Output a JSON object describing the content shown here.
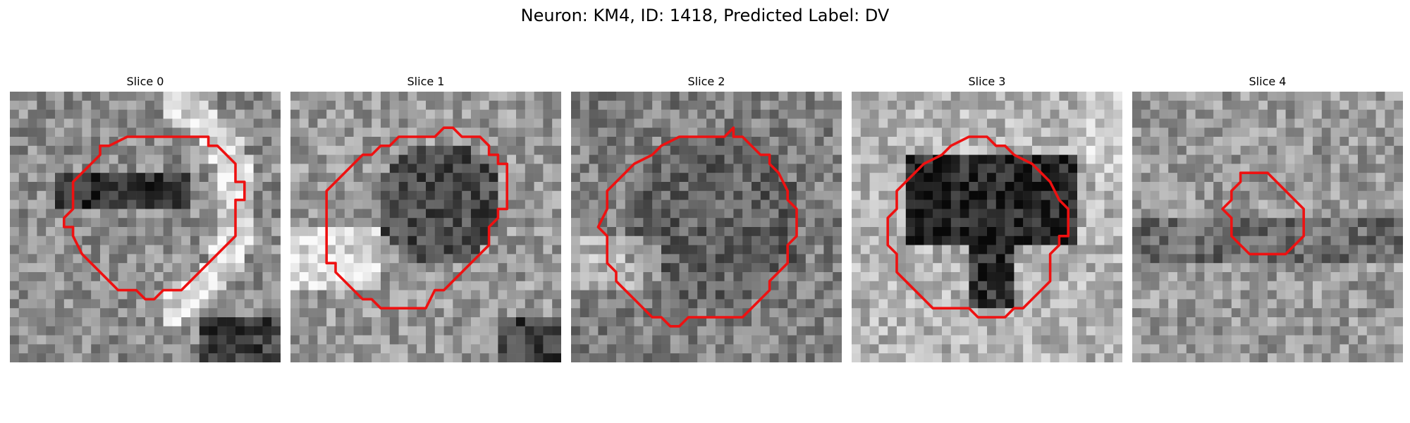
{
  "figure": {
    "title": "Neuron: KM4, ID: 1418, Predicted Label: DV"
  },
  "panels": [
    {
      "title": "Slice 0",
      "contour_color": "#ee1111",
      "seed": 11,
      "contour": [
        [
          14,
          5
        ],
        [
          22,
          5
        ],
        [
          22,
          6
        ],
        [
          23,
          6
        ],
        [
          25,
          8
        ],
        [
          25,
          10
        ],
        [
          26,
          10
        ],
        [
          26,
          12
        ],
        [
          25,
          12
        ],
        [
          25,
          16
        ],
        [
          24,
          17
        ],
        [
          21,
          20
        ],
        [
          20,
          21
        ],
        [
          19,
          22
        ],
        [
          17,
          22
        ],
        [
          16,
          23
        ],
        [
          15,
          23
        ],
        [
          14,
          22
        ],
        [
          14,
          22
        ],
        [
          12,
          22
        ],
        [
          11,
          21
        ],
        [
          9,
          19
        ],
        [
          8,
          18
        ],
        [
          7,
          16
        ],
        [
          7,
          15
        ],
        [
          6,
          15
        ],
        [
          6,
          14
        ],
        [
          7,
          13
        ],
        [
          7,
          10
        ],
        [
          8,
          9
        ],
        [
          9,
          8
        ],
        [
          10,
          7
        ],
        [
          10,
          6
        ],
        [
          11,
          6
        ],
        [
          13,
          5
        ],
        [
          14,
          5
        ]
      ]
    },
    {
      "title": "Slice 1",
      "contour_color": "#ee1111",
      "seed": 23,
      "contour": [
        [
          12,
          5
        ],
        [
          16,
          5
        ],
        [
          17,
          4
        ],
        [
          18,
          4
        ],
        [
          19,
          5
        ],
        [
          21,
          5
        ],
        [
          22,
          6
        ],
        [
          22,
          7
        ],
        [
          23,
          7
        ],
        [
          23,
          8
        ],
        [
          24,
          8
        ],
        [
          24,
          13
        ],
        [
          23,
          13
        ],
        [
          23,
          14
        ],
        [
          22,
          15
        ],
        [
          22,
          17
        ],
        [
          21,
          18
        ],
        [
          20,
          19
        ],
        [
          17,
          22
        ],
        [
          16,
          22
        ],
        [
          15,
          24
        ],
        [
          10,
          24
        ],
        [
          9,
          23
        ],
        [
          8,
          23
        ],
        [
          5,
          20
        ],
        [
          5,
          19
        ],
        [
          4,
          19
        ],
        [
          4,
          18
        ],
        [
          4,
          11
        ],
        [
          7,
          8
        ],
        [
          8,
          7
        ],
        [
          9,
          7
        ],
        [
          10,
          6
        ],
        [
          11,
          6
        ],
        [
          12,
          5
        ]
      ]
    },
    {
      "title": "Slice 2",
      "contour_color": "#ee1111",
      "seed": 37,
      "contour": [
        [
          12,
          5
        ],
        [
          17,
          5
        ],
        [
          18,
          4
        ],
        [
          18,
          5
        ],
        [
          19,
          5
        ],
        [
          21,
          7
        ],
        [
          22,
          7
        ],
        [
          22,
          8
        ],
        [
          23,
          9
        ],
        [
          24,
          11
        ],
        [
          24,
          12
        ],
        [
          25,
          13
        ],
        [
          25,
          16
        ],
        [
          24,
          17
        ],
        [
          24,
          19
        ],
        [
          23,
          20
        ],
        [
          22,
          21
        ],
        [
          22,
          22
        ],
        [
          21,
          23
        ],
        [
          20,
          24
        ],
        [
          19,
          25
        ],
        [
          13,
          25
        ],
        [
          12,
          26
        ],
        [
          11,
          26
        ],
        [
          10,
          25
        ],
        [
          9,
          25
        ],
        [
          7,
          23
        ],
        [
          6,
          22
        ],
        [
          5,
          21
        ],
        [
          5,
          20
        ],
        [
          4,
          19
        ],
        [
          4,
          16
        ],
        [
          3,
          15
        ],
        [
          4,
          13
        ],
        [
          4,
          11
        ],
        [
          5,
          10
        ],
        [
          6,
          9
        ],
        [
          7,
          8
        ],
        [
          9,
          7
        ],
        [
          10,
          6
        ],
        [
          12,
          5
        ]
      ]
    },
    {
      "title": "Slice 3",
      "contour_color": "#ee1111",
      "seed": 53,
      "contour": [
        [
          13,
          5
        ],
        [
          15,
          5
        ],
        [
          16,
          6
        ],
        [
          17,
          6
        ],
        [
          18,
          7
        ],
        [
          20,
          8
        ],
        [
          21,
          9
        ],
        [
          22,
          10
        ],
        [
          23,
          12
        ],
        [
          24,
          13
        ],
        [
          24,
          16
        ],
        [
          23,
          16
        ],
        [
          23,
          17
        ],
        [
          22,
          18
        ],
        [
          22,
          21
        ],
        [
          21,
          22
        ],
        [
          20,
          23
        ],
        [
          19,
          24
        ],
        [
          18,
          24
        ],
        [
          17,
          25
        ],
        [
          14,
          25
        ],
        [
          13,
          24
        ],
        [
          9,
          24
        ],
        [
          8,
          23
        ],
        [
          6,
          21
        ],
        [
          5,
          20
        ],
        [
          5,
          18
        ],
        [
          4,
          17
        ],
        [
          4,
          14
        ],
        [
          5,
          13
        ],
        [
          5,
          11
        ],
        [
          6,
          10
        ],
        [
          7,
          9
        ],
        [
          8,
          8
        ],
        [
          10,
          7
        ],
        [
          11,
          6
        ],
        [
          13,
          5
        ]
      ]
    },
    {
      "title": "Slice 4",
      "contour_color": "#ee1111",
      "seed": 71,
      "contour": [
        [
          12,
          9
        ],
        [
          13,
          9
        ],
        [
          15,
          9
        ],
        [
          16,
          10
        ],
        [
          17,
          11
        ],
        [
          17,
          11
        ],
        [
          18,
          12
        ],
        [
          19,
          13
        ],
        [
          19,
          14
        ],
        [
          19,
          16
        ],
        [
          18,
          17
        ],
        [
          17,
          18
        ],
        [
          16,
          18
        ],
        [
          14,
          18
        ],
        [
          13,
          18
        ],
        [
          12,
          17
        ],
        [
          11,
          16
        ],
        [
          11,
          14
        ],
        [
          10,
          13
        ],
        [
          11,
          12
        ],
        [
          11,
          11
        ],
        [
          12,
          10
        ],
        [
          12,
          9
        ]
      ]
    }
  ]
}
